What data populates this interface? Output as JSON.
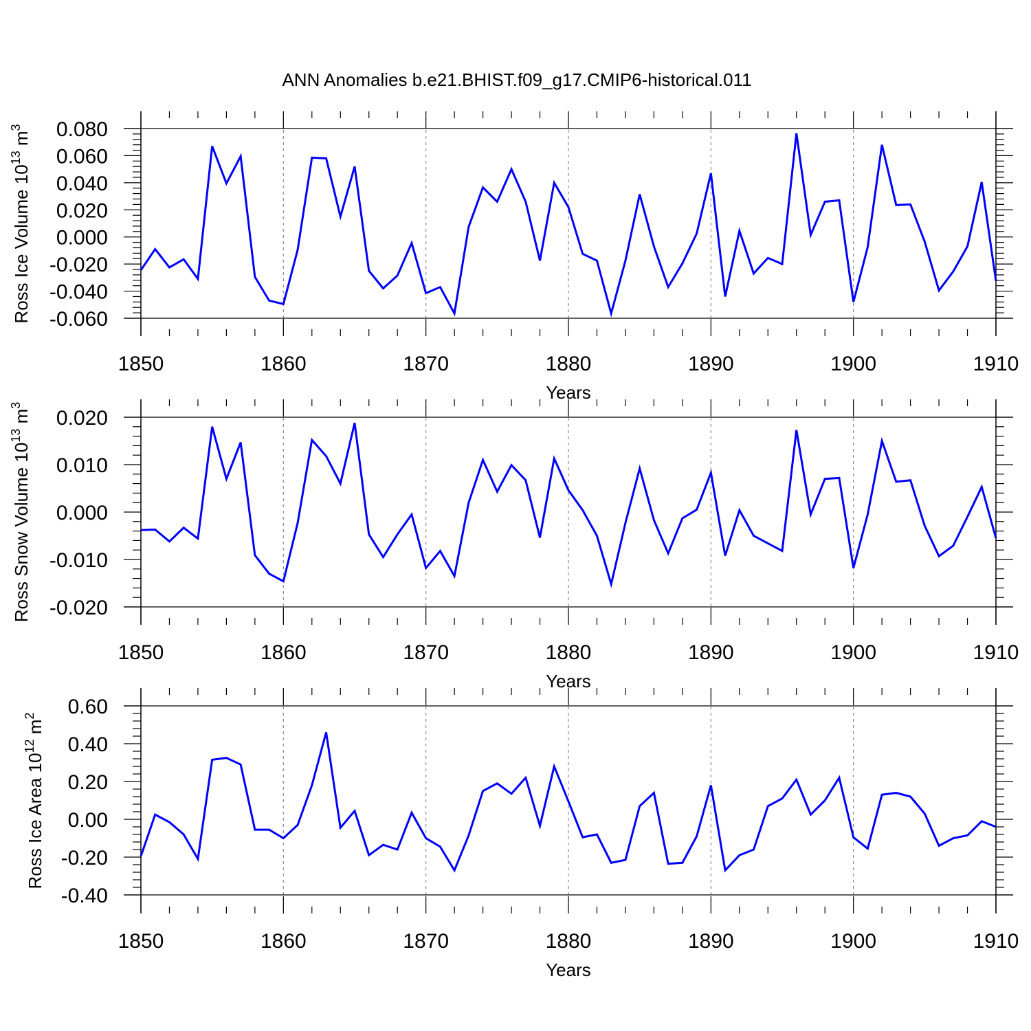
{
  "title": "ANN Anomalies b.e21.BHIST.f09_g17.CMIP6-historical.011",
  "line_color": "#0000ff",
  "chart_data": [
    {
      "type": "line",
      "ylabel": "Ross Ice Volume 10",
      "ylabel_exp": "13",
      "ylabel_unit": " m",
      "ylabel_unit_exp": "3",
      "xlabel": "Years",
      "xlim": [
        1850,
        1910
      ],
      "ylim": [
        -0.06,
        0.08
      ],
      "xticks": [
        1850,
        1860,
        1870,
        1880,
        1890,
        1900,
        1910
      ],
      "xtick_labels": [
        "1850",
        "1860",
        "1870",
        "1880",
        "1890",
        "1900",
        "1910"
      ],
      "yticks": [
        0.08,
        0.06,
        0.04,
        0.02,
        0.0,
        -0.02,
        -0.04,
        -0.06
      ],
      "ytick_labels": [
        "0.080",
        "0.060",
        "0.040",
        "0.020",
        "0.000",
        "-0.020",
        "-0.040",
        "-0.060"
      ],
      "x_start": 1850,
      "values": [
        -0.0245,
        -0.009,
        -0.0225,
        -0.0165,
        -0.031,
        0.067,
        0.0395,
        0.0595,
        -0.0295,
        -0.047,
        -0.0495,
        -0.0095,
        0.0585,
        0.058,
        0.015,
        0.052,
        -0.025,
        -0.038,
        -0.0285,
        -0.0045,
        -0.0415,
        -0.037,
        -0.0565,
        0.0075,
        0.0365,
        0.026,
        0.05,
        0.026,
        -0.0175,
        0.04,
        0.022,
        -0.0125,
        -0.0175,
        -0.0565,
        -0.0175,
        0.0315,
        -0.007,
        -0.037,
        -0.0195,
        0.0025,
        0.047,
        -0.044,
        0.0045,
        -0.027,
        -0.0155,
        -0.02,
        0.0765,
        0.0015,
        0.026,
        0.027,
        -0.048,
        -0.0075,
        0.068,
        0.0235,
        0.024,
        -0.0035,
        -0.0395,
        -0.0255,
        -0.007,
        0.0405,
        -0.0325
      ]
    },
    {
      "type": "line",
      "ylabel": "Ross Snow Volume 10",
      "ylabel_exp": "13",
      "ylabel_unit": " m",
      "ylabel_unit_exp": "3",
      "xlabel": "Years",
      "xlim": [
        1850,
        1910
      ],
      "ylim": [
        -0.02,
        0.02
      ],
      "xticks": [
        1850,
        1860,
        1870,
        1880,
        1890,
        1900,
        1910
      ],
      "xtick_labels": [
        "1850",
        "1860",
        "1870",
        "1880",
        "1890",
        "1900",
        "1910"
      ],
      "yticks": [
        0.02,
        0.01,
        0.0,
        -0.01,
        -0.02
      ],
      "ytick_labels": [
        "0.020",
        "0.010",
        "0.000",
        "-0.010",
        "-0.020"
      ],
      "x_start": 1850,
      "values": [
        -0.0038,
        -0.0037,
        -0.0062,
        -0.0033,
        -0.0056,
        0.018,
        0.007,
        0.0147,
        -0.0091,
        -0.013,
        -0.0146,
        -0.0023,
        0.0152,
        0.0118,
        0.006,
        0.0188,
        -0.0047,
        -0.0095,
        -0.0047,
        -0.0005,
        -0.0118,
        -0.0082,
        -0.0135,
        0.002,
        0.011,
        0.0043,
        0.0099,
        0.0067,
        -0.0054,
        0.0113,
        0.0046,
        0.0004,
        -0.005,
        -0.0152,
        -0.0023,
        0.0092,
        -0.0017,
        -0.0087,
        -0.0013,
        0.0005,
        0.0083,
        -0.0092,
        0.0004,
        -0.005,
        -0.0066,
        -0.0082,
        0.0173,
        -0.0005,
        0.007,
        0.0072,
        -0.0118,
        -0.0005,
        0.015,
        0.0064,
        0.0067,
        -0.0029,
        -0.0093,
        -0.0071,
        -0.001,
        0.0053,
        -0.0055
      ]
    },
    {
      "type": "line",
      "ylabel": "Ross Ice Area 10",
      "ylabel_exp": "12",
      "ylabel_unit": " m",
      "ylabel_unit_exp": "2",
      "xlabel": "Years",
      "xlim": [
        1850,
        1910
      ],
      "ylim": [
        -0.4,
        0.6
      ],
      "xticks": [
        1850,
        1860,
        1870,
        1880,
        1890,
        1900,
        1910
      ],
      "xtick_labels": [
        "1850",
        "1860",
        "1870",
        "1880",
        "1890",
        "1900",
        "1910"
      ],
      "yticks": [
        0.6,
        0.4,
        0.2,
        0.0,
        -0.2,
        -0.4
      ],
      "ytick_labels": [
        "0.60",
        "0.40",
        "0.20",
        "0.00",
        "-0.20",
        "-0.40"
      ],
      "x_start": 1850,
      "values": [
        -0.195,
        0.025,
        -0.015,
        -0.08,
        -0.21,
        0.315,
        0.325,
        0.29,
        -0.055,
        -0.055,
        -0.1,
        -0.03,
        0.18,
        0.46,
        -0.045,
        0.045,
        -0.19,
        -0.135,
        -0.16,
        0.035,
        -0.1,
        -0.145,
        -0.27,
        -0.085,
        0.15,
        0.19,
        0.135,
        0.22,
        -0.035,
        0.28,
        0.095,
        -0.095,
        -0.08,
        -0.23,
        -0.215,
        0.07,
        0.14,
        -0.235,
        -0.23,
        -0.09,
        0.18,
        -0.27,
        -0.19,
        -0.16,
        0.07,
        0.11,
        0.21,
        0.025,
        0.1,
        0.22,
        -0.095,
        -0.155,
        0.13,
        0.14,
        0.12,
        0.03,
        -0.14,
        -0.1,
        -0.085,
        -0.01,
        -0.04
      ]
    }
  ]
}
